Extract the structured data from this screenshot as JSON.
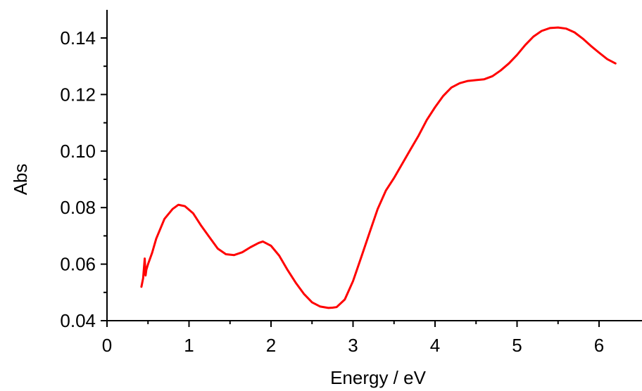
{
  "chart_data": {
    "type": "line",
    "title": "",
    "xlabel": "Energy / eV",
    "ylabel": "Abs",
    "xlim": [
      0,
      6.3
    ],
    "ylim": [
      0.04,
      0.15
    ],
    "x_ticks": [
      0,
      1,
      2,
      3,
      4,
      5,
      6
    ],
    "x_tick_labels": [
      "0",
      "1",
      "2",
      "3",
      "4",
      "5",
      "6"
    ],
    "y_ticks": [
      0.04,
      0.06,
      0.08,
      0.1,
      0.12,
      0.14
    ],
    "y_tick_labels": [
      "0.04",
      "0.06",
      "0.08",
      "0.10",
      "0.12",
      "0.14"
    ],
    "grid": false,
    "series": [
      {
        "color": "#ff0000",
        "x": [
          0.42,
          0.44,
          0.46,
          0.47,
          0.48,
          0.5,
          0.55,
          0.6,
          0.7,
          0.8,
          0.87,
          0.95,
          1.05,
          1.15,
          1.25,
          1.35,
          1.45,
          1.55,
          1.65,
          1.75,
          1.85,
          1.9,
          2.0,
          2.1,
          2.2,
          2.3,
          2.4,
          2.5,
          2.6,
          2.7,
          2.75,
          2.8,
          2.9,
          3.0,
          3.1,
          3.2,
          3.3,
          3.4,
          3.5,
          3.6,
          3.7,
          3.8,
          3.9,
          4.0,
          4.1,
          4.2,
          4.3,
          4.4,
          4.5,
          4.6,
          4.7,
          4.8,
          4.9,
          5.0,
          5.1,
          5.2,
          5.3,
          5.4,
          5.5,
          5.6,
          5.7,
          5.8,
          5.9,
          6.0,
          6.1,
          6.2
        ],
        "y": [
          0.052,
          0.055,
          0.062,
          0.056,
          0.058,
          0.06,
          0.064,
          0.069,
          0.076,
          0.0795,
          0.081,
          0.0805,
          0.078,
          0.0735,
          0.0695,
          0.0655,
          0.0635,
          0.0632,
          0.0642,
          0.066,
          0.0675,
          0.068,
          0.0665,
          0.063,
          0.058,
          0.0535,
          0.0495,
          0.0465,
          0.045,
          0.0445,
          0.0446,
          0.0448,
          0.0475,
          0.054,
          0.0625,
          0.071,
          0.0795,
          0.086,
          0.0905,
          0.0955,
          0.1005,
          0.1055,
          0.111,
          0.1155,
          0.1195,
          0.1225,
          0.124,
          0.1248,
          0.1251,
          0.1254,
          0.1265,
          0.1285,
          0.131,
          0.134,
          0.1375,
          0.1405,
          0.1425,
          0.1435,
          0.1437,
          0.1433,
          0.142,
          0.1398,
          0.1372,
          0.1348,
          0.1325,
          0.131
        ]
      }
    ]
  }
}
